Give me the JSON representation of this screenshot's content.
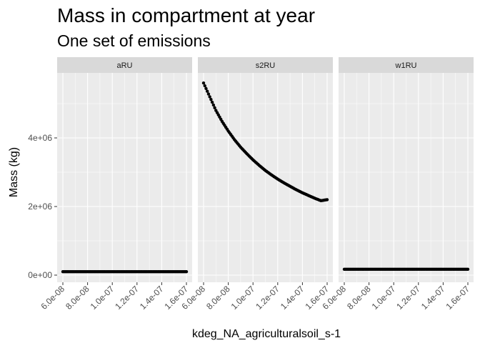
{
  "colors": {
    "panel_bg": "#ebebeb",
    "grid_major": "#ffffff",
    "strip_bg": "#d9d9d9",
    "point": "#000000",
    "tick": "#4d4d4d"
  },
  "chart_data": {
    "type": "scatter",
    "title": "Mass in compartment at year",
    "subtitle": "One set of emissions",
    "xlabel": "kdeg_NA_agriculturalsoil_s-1",
    "ylabel": "Mass (kg)",
    "xlim": [
      6e-08,
      1.6e-07
    ],
    "ylim": [
      0,
      6000000
    ],
    "x_ticks": [
      6e-08,
      8e-08,
      1e-07,
      1.2e-07,
      1.4e-07,
      1.6e-07
    ],
    "x_tick_labels": [
      "6.0e-08",
      "8.0e-08",
      "1.0e-07",
      "1.2e-07",
      "1.4e-07",
      "1.6e-07"
    ],
    "y_ticks": [
      0,
      2000000,
      4000000
    ],
    "y_tick_labels": [
      "0e+00",
      "2e+06",
      "4e+06"
    ],
    "grid": true,
    "legend": "none",
    "facets": [
      {
        "label": "aRU",
        "points": [
          [
            6e-08,
            100000
          ],
          [
            6.5e-08,
            100000
          ],
          [
            7e-08,
            100000
          ],
          [
            7.5e-08,
            100000
          ],
          [
            8e-08,
            100000
          ],
          [
            8.5e-08,
            100000
          ],
          [
            9e-08,
            100000
          ],
          [
            9.5e-08,
            100000
          ],
          [
            1e-07,
            100000
          ],
          [
            1.05e-07,
            100000
          ],
          [
            1.1e-07,
            100000
          ],
          [
            1.15e-07,
            100000
          ],
          [
            1.2e-07,
            100000
          ],
          [
            1.25e-07,
            100000
          ],
          [
            1.3e-07,
            100000
          ],
          [
            1.35e-07,
            100000
          ],
          [
            1.4e-07,
            100000
          ],
          [
            1.45e-07,
            100000
          ],
          [
            1.5e-07,
            100000
          ],
          [
            1.55e-07,
            100000
          ],
          [
            1.6e-07,
            100000
          ]
        ]
      },
      {
        "label": "s2RU",
        "points": [
          [
            6e-08,
            5600000
          ],
          [
            6.5e-08,
            5200000
          ],
          [
            7e-08,
            4800000
          ],
          [
            7.5e-08,
            4480000
          ],
          [
            8e-08,
            4200000
          ],
          [
            8.5e-08,
            3950000
          ],
          [
            9e-08,
            3730000
          ],
          [
            9.5e-08,
            3540000
          ],
          [
            1e-07,
            3360000
          ],
          [
            1.05e-07,
            3200000
          ],
          [
            1.1e-07,
            3050000
          ],
          [
            1.15e-07,
            2920000
          ],
          [
            1.2e-07,
            2800000
          ],
          [
            1.25e-07,
            2690000
          ],
          [
            1.3e-07,
            2590000
          ],
          [
            1.35e-07,
            2490000
          ],
          [
            1.4e-07,
            2400000
          ],
          [
            1.45e-07,
            2320000
          ],
          [
            1.5e-07,
            2240000
          ],
          [
            1.55e-07,
            2170000
          ],
          [
            1.6e-07,
            2200000
          ]
        ]
      },
      {
        "label": "w1RU",
        "points": [
          [
            6e-08,
            170000
          ],
          [
            6.5e-08,
            170000
          ],
          [
            7e-08,
            170000
          ],
          [
            7.5e-08,
            170000
          ],
          [
            8e-08,
            170000
          ],
          [
            8.5e-08,
            170000
          ],
          [
            9e-08,
            170000
          ],
          [
            9.5e-08,
            170000
          ],
          [
            1e-07,
            170000
          ],
          [
            1.05e-07,
            170000
          ],
          [
            1.1e-07,
            170000
          ],
          [
            1.15e-07,
            170000
          ],
          [
            1.2e-07,
            170000
          ],
          [
            1.25e-07,
            170000
          ],
          [
            1.3e-07,
            170000
          ],
          [
            1.35e-07,
            170000
          ],
          [
            1.4e-07,
            170000
          ],
          [
            1.45e-07,
            170000
          ],
          [
            1.5e-07,
            170000
          ],
          [
            1.55e-07,
            170000
          ],
          [
            1.6e-07,
            170000
          ]
        ]
      }
    ]
  }
}
